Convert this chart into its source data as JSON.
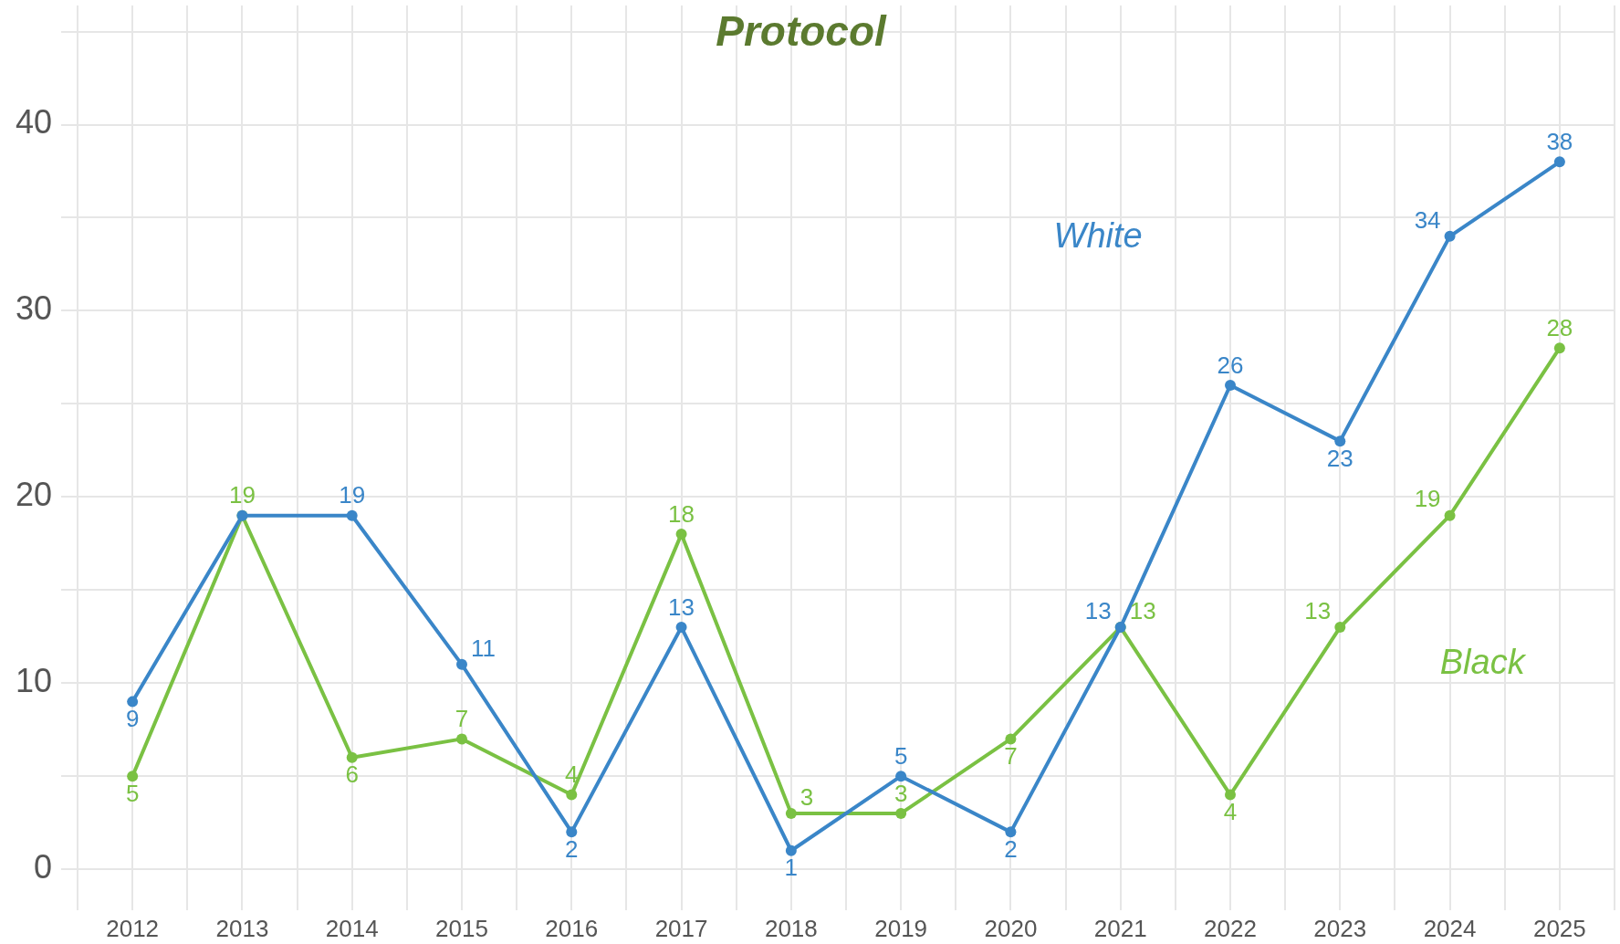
{
  "chart_data": {
    "type": "line",
    "title": "Protocol",
    "x": [
      2012,
      2013,
      2014,
      2015,
      2016,
      2017,
      2018,
      2019,
      2020,
      2021,
      2022,
      2023,
      2024,
      2025
    ],
    "series": [
      {
        "name": "White",
        "color": "#3a86c8",
        "values": [
          9,
          19,
          19,
          11,
          2,
          13,
          1,
          5,
          2,
          13,
          26,
          23,
          34,
          38
        ],
        "value_labels": [
          "9",
          null,
          "19",
          "11",
          "2",
          "13",
          "1",
          "5",
          "2",
          "13",
          "26",
          "23",
          "34",
          "38"
        ]
      },
      {
        "name": "Black",
        "color": "#7ac143",
        "values": [
          5,
          19,
          6,
          7,
          4,
          18,
          3,
          3,
          7,
          13,
          4,
          13,
          19,
          28
        ],
        "value_labels": [
          "5",
          "19",
          "6",
          "7",
          "4",
          "18",
          "3",
          "3",
          "7",
          "13",
          "4",
          "13",
          "19",
          "28"
        ]
      }
    ],
    "xlim": [
      2011.5,
      2025.5
    ],
    "xticks": [
      {
        "value": 2011.5,
        "label": null
      },
      2012,
      {
        "value": 2012.5,
        "label": null
      },
      2013,
      {
        "value": 2013.5,
        "label": null
      },
      2014,
      {
        "value": 2014.5,
        "label": null
      },
      2015,
      {
        "value": 2015.5,
        "label": null
      },
      2016,
      {
        "value": 2016.5,
        "label": null
      },
      2017,
      {
        "value": 2017.5,
        "label": null
      },
      2018,
      {
        "value": 2018.5,
        "label": null
      },
      2019,
      {
        "value": 2019.5,
        "label": null
      },
      2020,
      {
        "value": 2020.5,
        "label": null
      },
      2021,
      {
        "value": 2021.5,
        "label": null
      },
      2022,
      {
        "value": 2022.5,
        "label": null
      },
      2023,
      {
        "value": 2023.5,
        "label": null
      },
      2024,
      {
        "value": 2024.5,
        "label": null
      },
      2025,
      {
        "value": 2025.5,
        "label": null
      }
    ],
    "ylim": [
      -2.2,
      46.4
    ],
    "yticks": [
      0,
      {
        "value": 5,
        "label": null
      },
      10,
      {
        "value": 15,
        "label": null
      },
      20,
      {
        "value": 25,
        "label": null
      },
      30,
      {
        "value": 35,
        "label": null
      },
      40,
      {
        "value": 45,
        "label": null
      }
    ],
    "grid": true,
    "marker": "circle",
    "line_style": "solid"
  }
}
